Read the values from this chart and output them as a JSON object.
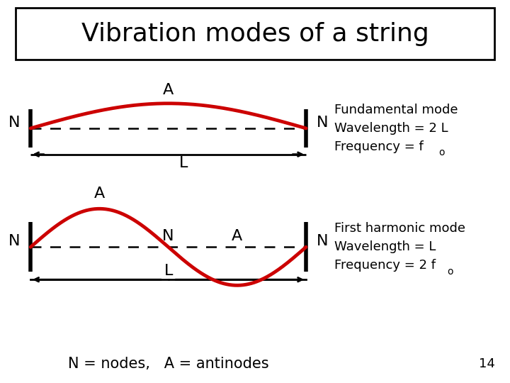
{
  "title": "Vibration modes of a string",
  "title_fontsize": 26,
  "wave_color": "#cc0000",
  "wave_linewidth": 3.5,
  "dashed_color": "#000000",
  "text_color": "#000000",
  "bg_color": "#ffffff",
  "mode1": {
    "label_N_left": "N",
    "label_A": "A",
    "label_N_right": "N",
    "label_L": "L",
    "info_line1": "Fundamental mode",
    "info_line2": "Wavelength = 2 L",
    "info_line3": "Frequency = f",
    "info_sub": "o"
  },
  "mode2": {
    "label_N_left": "N",
    "label_A_left": "A",
    "label_N_mid": "N",
    "label_A_right": "A",
    "label_N_right": "N",
    "label_L": "L",
    "info_line1": "First harmonic mode",
    "info_line2": "Wavelength = L",
    "info_line3": "Frequency = 2 f",
    "info_sub": "o"
  },
  "footer": "N = nodes,   A = antinodes",
  "page_num": "14",
  "mode1_wave_amplitude": 0.065,
  "mode2_wave_amplitude": 0.1,
  "label_fontsize": 16,
  "info_fontsize": 13,
  "sub_fontsize": 10,
  "footer_fontsize": 15,
  "pagenum_fontsize": 13
}
